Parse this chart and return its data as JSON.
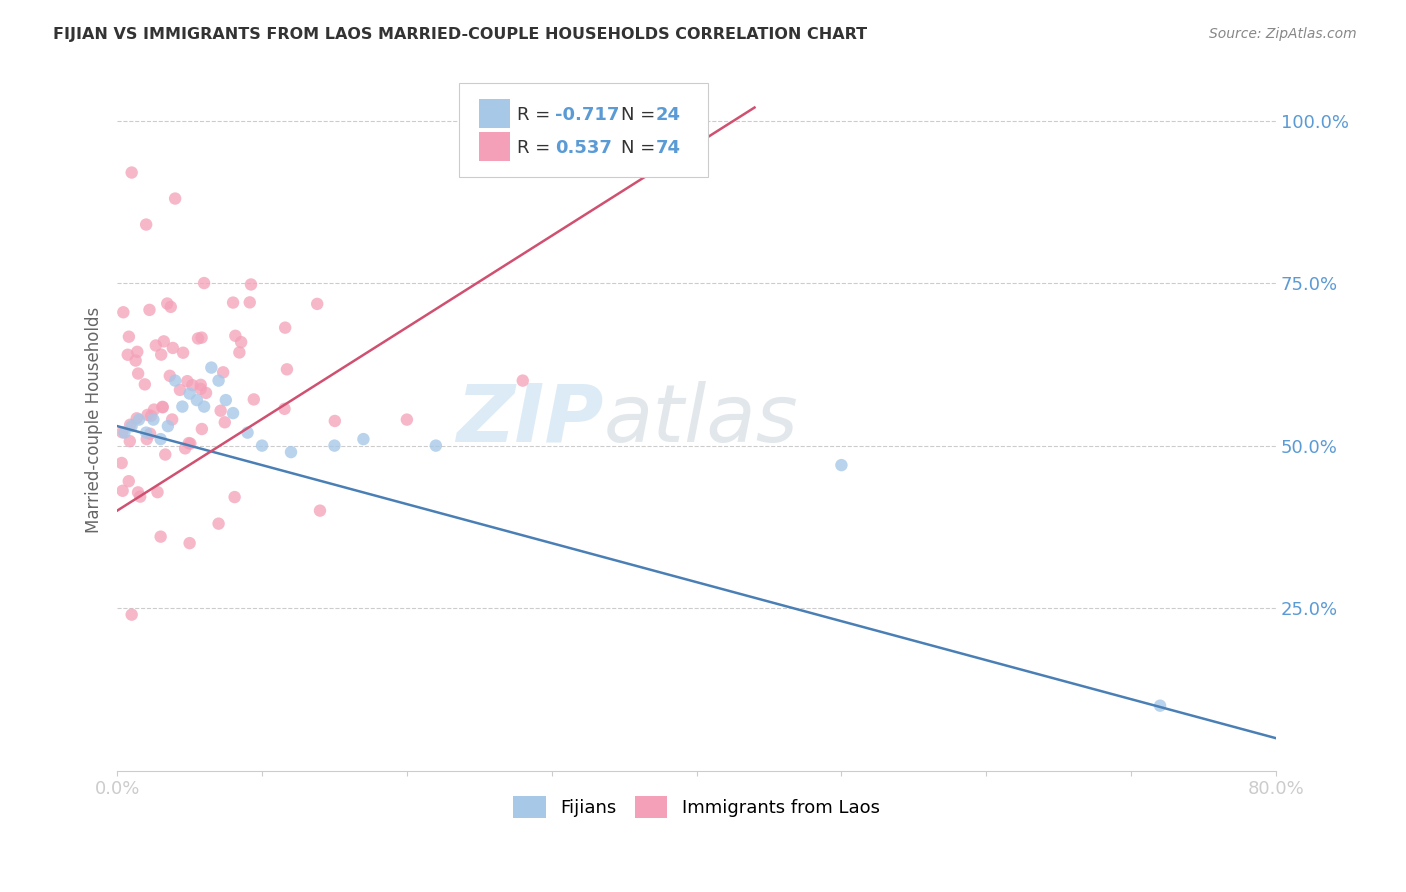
{
  "title": "FIJIAN VS IMMIGRANTS FROM LAOS MARRIED-COUPLE HOUSEHOLDS CORRELATION CHART",
  "source": "Source: ZipAtlas.com",
  "ylabel": "Married-couple Households",
  "xlim": [
    0.0,
    0.8
  ],
  "ylim": [
    0.0,
    1.08
  ],
  "background_color": "#ffffff",
  "fijians": {
    "R": -0.717,
    "N": 24,
    "color": "#a8c8e8",
    "line_color": "#4a7fb5",
    "scatter_x": [
      0.005,
      0.01,
      0.015,
      0.02,
      0.025,
      0.03,
      0.035,
      0.04,
      0.045,
      0.05,
      0.055,
      0.06,
      0.065,
      0.07,
      0.075,
      0.08,
      0.09,
      0.1,
      0.12,
      0.15,
      0.17,
      0.22,
      0.5,
      0.72
    ],
    "scatter_y": [
      0.52,
      0.53,
      0.54,
      0.52,
      0.54,
      0.51,
      0.53,
      0.6,
      0.56,
      0.58,
      0.57,
      0.56,
      0.62,
      0.6,
      0.57,
      0.55,
      0.52,
      0.5,
      0.49,
      0.5,
      0.51,
      0.5,
      0.47,
      0.1
    ],
    "trend_x": [
      0.0,
      0.8
    ],
    "trend_y": [
      0.53,
      0.05
    ]
  },
  "laos": {
    "R": 0.537,
    "N": 74,
    "color": "#f4a0b8",
    "line_color": "#d05070",
    "trend_x": [
      0.0,
      0.44
    ],
    "trend_y": [
      0.4,
      1.02
    ]
  },
  "title_color": "#333333",
  "source_color": "#888888",
  "axis_tick_color": "#5b9bd5",
  "ylabel_color": "#666666",
  "stat_value_color": "#5b9bd5",
  "stat_label_color": "#333333",
  "grid_color": "#cccccc",
  "watermark_zip_color": "#c5dff0",
  "watermark_atlas_color": "#d0d8e0"
}
